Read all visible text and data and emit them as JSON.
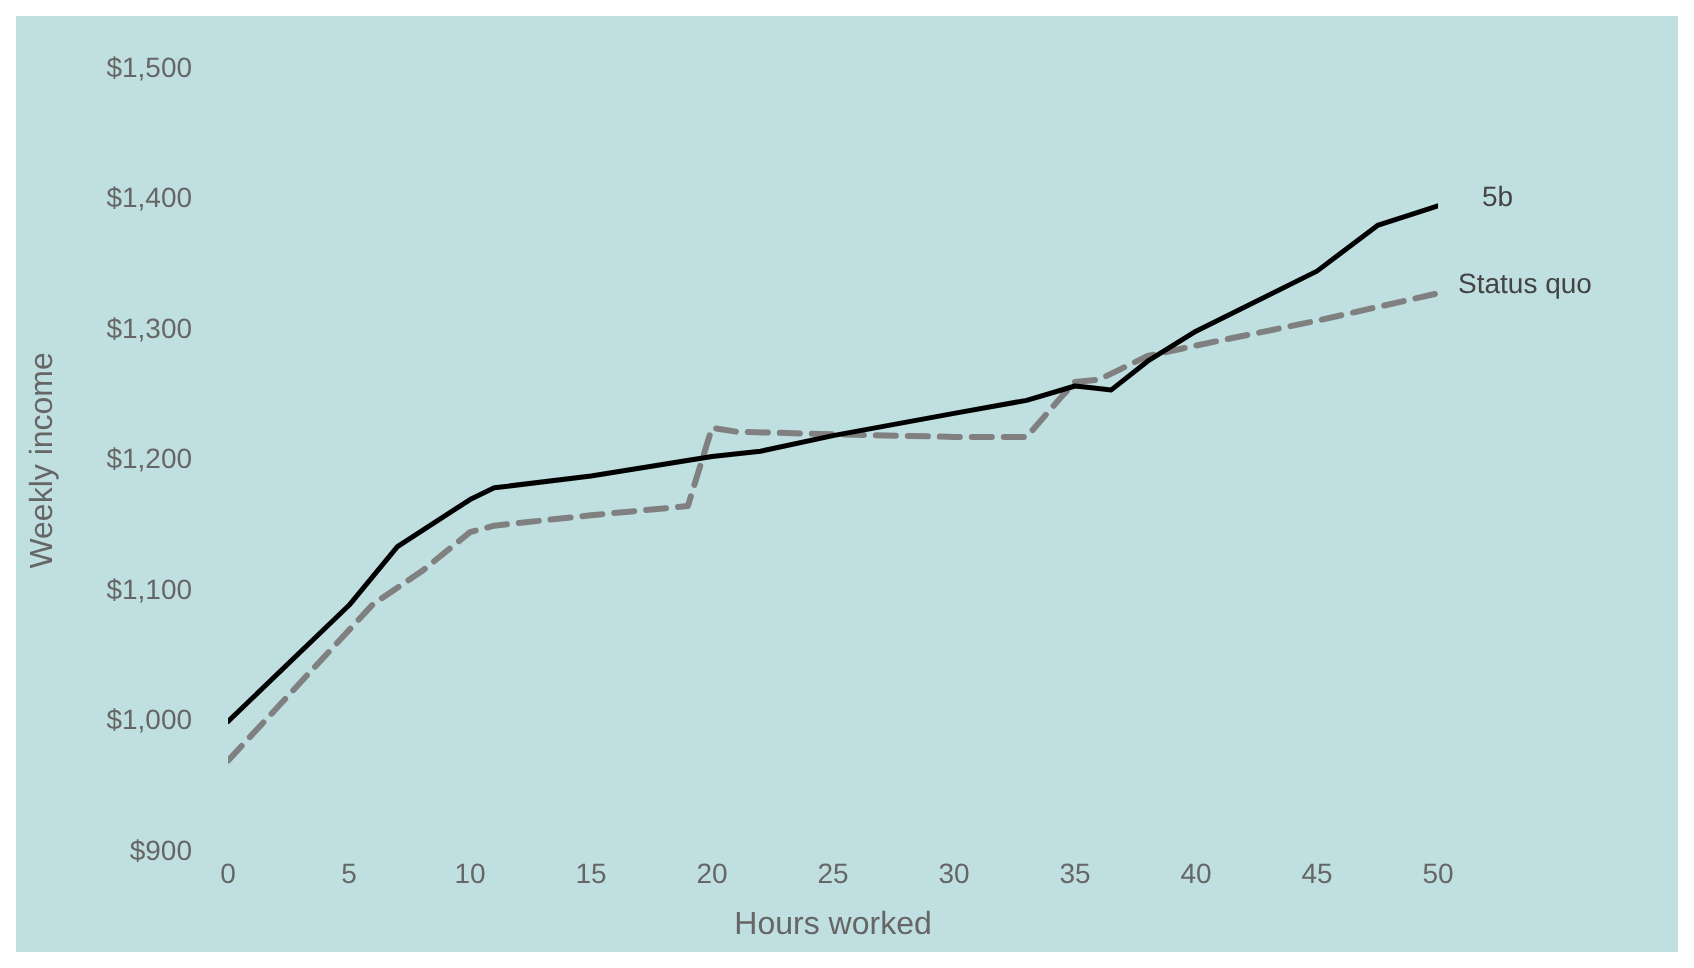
{
  "chart_data": {
    "type": "line",
    "xlabel": "Hours worked",
    "ylabel": "Weekly income",
    "xlim": [
      0,
      50
    ],
    "xticks": [
      0,
      5,
      10,
      15,
      20,
      25,
      30,
      35,
      40,
      45,
      50
    ],
    "ylim": [
      900,
      1500
    ],
    "yticks": [
      {
        "value": 900,
        "label": "$900"
      },
      {
        "value": 1000,
        "label": "$1,000"
      },
      {
        "value": 1100,
        "label": "$1,100"
      },
      {
        "value": 1200,
        "label": "$1,200"
      },
      {
        "value": 1300,
        "label": "$1,300"
      },
      {
        "value": 1400,
        "label": "$1,400"
      },
      {
        "value": 1500,
        "label": "$1,500"
      }
    ],
    "grid": false,
    "legend": false,
    "marker": "none",
    "series": [
      {
        "name": "5b",
        "color": "#000000",
        "line_style": "solid",
        "x": [
          0,
          5,
          7,
          10,
          11,
          15,
          20,
          22,
          25,
          30,
          33,
          35,
          35.5,
          36.5,
          38,
          40,
          45,
          47.5,
          50
        ],
        "values": [
          1000,
          1089,
          1134,
          1170,
          1179,
          1188,
          1203,
          1207,
          1219,
          1236,
          1246,
          1257,
          1256,
          1254,
          1276,
          1299,
          1345,
          1380,
          1395
        ]
      },
      {
        "name": "Status quo",
        "color": "#808080",
        "line_style": "dashed",
        "x": [
          0,
          3,
          6,
          8,
          10,
          11,
          15,
          19,
          19.5,
          20,
          21,
          25,
          30,
          33,
          34.5,
          35,
          36,
          38,
          40,
          45,
          50
        ],
        "values": [
          970,
          1030,
          1090,
          1115,
          1145,
          1150,
          1158,
          1165,
          1195,
          1225,
          1222,
          1220,
          1218,
          1218,
          1250,
          1260,
          1262,
          1280,
          1288,
          1307,
          1328
        ]
      }
    ]
  }
}
